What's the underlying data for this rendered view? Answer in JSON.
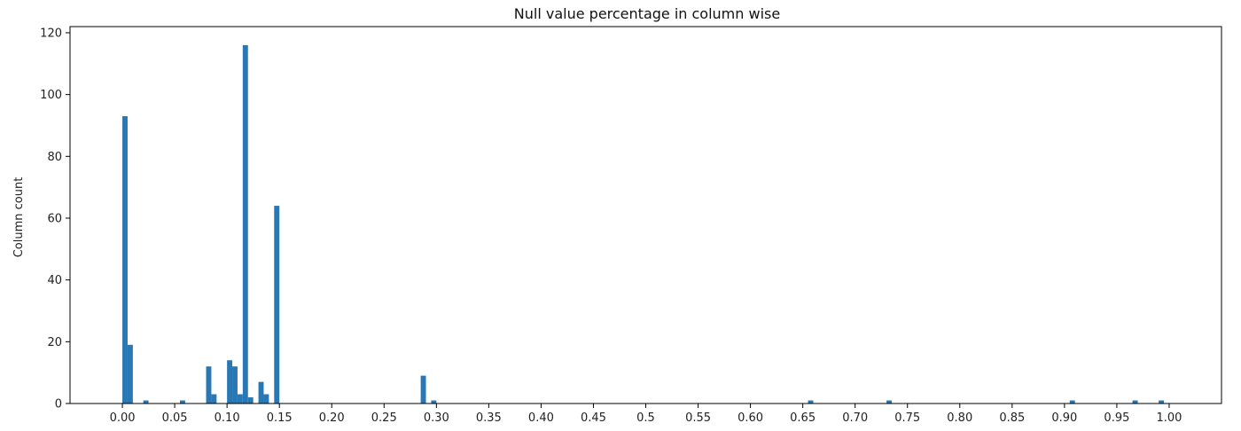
{
  "chart_data": {
    "type": "bar",
    "title": "Null value percentage in column wise",
    "xlabel": "",
    "ylabel": "Column count",
    "xlim": [
      -0.05,
      1.05
    ],
    "ylim": [
      0,
      122
    ],
    "xticks": [
      0.0,
      0.05,
      0.1,
      0.15,
      0.2,
      0.25,
      0.3,
      0.35,
      0.4,
      0.45,
      0.5,
      0.55,
      0.6,
      0.65,
      0.7,
      0.75,
      0.8,
      0.85,
      0.9,
      0.95,
      1.0
    ],
    "xtick_labels": [
      "0.00",
      "0.05",
      "0.10",
      "0.15",
      "0.20",
      "0.25",
      "0.30",
      "0.35",
      "0.40",
      "0.45",
      "0.5",
      "0.55",
      "0.60",
      "0.65",
      "0.70",
      "0.75",
      "0.80",
      "0.85",
      "0.90",
      "0.95",
      "1.00"
    ],
    "yticks": [
      0,
      20,
      40,
      60,
      80,
      100,
      120
    ],
    "ytick_labels": [
      "0",
      "20",
      "40",
      "60",
      "80",
      "100",
      "120"
    ],
    "bin_width": 0.005,
    "bins": [
      {
        "x": 0.0,
        "count": 93
      },
      {
        "x": 0.005,
        "count": 19
      },
      {
        "x": 0.02,
        "count": 1
      },
      {
        "x": 0.055,
        "count": 1
      },
      {
        "x": 0.08,
        "count": 12
      },
      {
        "x": 0.085,
        "count": 3
      },
      {
        "x": 0.1,
        "count": 14
      },
      {
        "x": 0.105,
        "count": 12
      },
      {
        "x": 0.11,
        "count": 3
      },
      {
        "x": 0.115,
        "count": 116
      },
      {
        "x": 0.12,
        "count": 2
      },
      {
        "x": 0.13,
        "count": 7
      },
      {
        "x": 0.135,
        "count": 3
      },
      {
        "x": 0.145,
        "count": 64
      },
      {
        "x": 0.285,
        "count": 9
      },
      {
        "x": 0.295,
        "count": 1
      },
      {
        "x": 0.655,
        "count": 1
      },
      {
        "x": 0.73,
        "count": 1
      },
      {
        "x": 0.905,
        "count": 1
      },
      {
        "x": 0.965,
        "count": 1
      },
      {
        "x": 0.99,
        "count": 1
      }
    ],
    "grid": false,
    "colors": {
      "bar": "#2878b5",
      "axis": "#000000"
    }
  }
}
